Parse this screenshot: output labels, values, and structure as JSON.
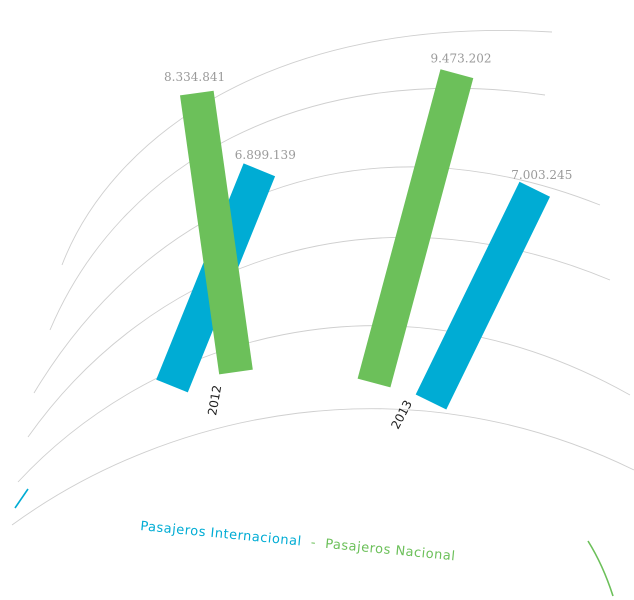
{
  "chart_data": {
    "type": "bar",
    "layout": "radial",
    "categories": [
      "2012",
      "2013"
    ],
    "series": [
      {
        "name": "Pasajeros Internacional",
        "color": "#00acd4",
        "values": [
          6899139,
          7003245
        ],
        "labels": [
          "6.899.139",
          "7.003.245"
        ]
      },
      {
        "name": "Pasajeros Nacional",
        "color": "#6cc05a",
        "values": [
          8334841,
          9473202
        ],
        "labels": [
          "8.334.841",
          "9.473.202"
        ]
      }
    ],
    "legend": {
      "text_a": "Pasajeros Internacional",
      "separator": " - ",
      "text_b": "Pasajeros Nacional",
      "position": "bottom"
    },
    "grid": true,
    "title": "",
    "xlabel": "",
    "ylabel": ""
  }
}
